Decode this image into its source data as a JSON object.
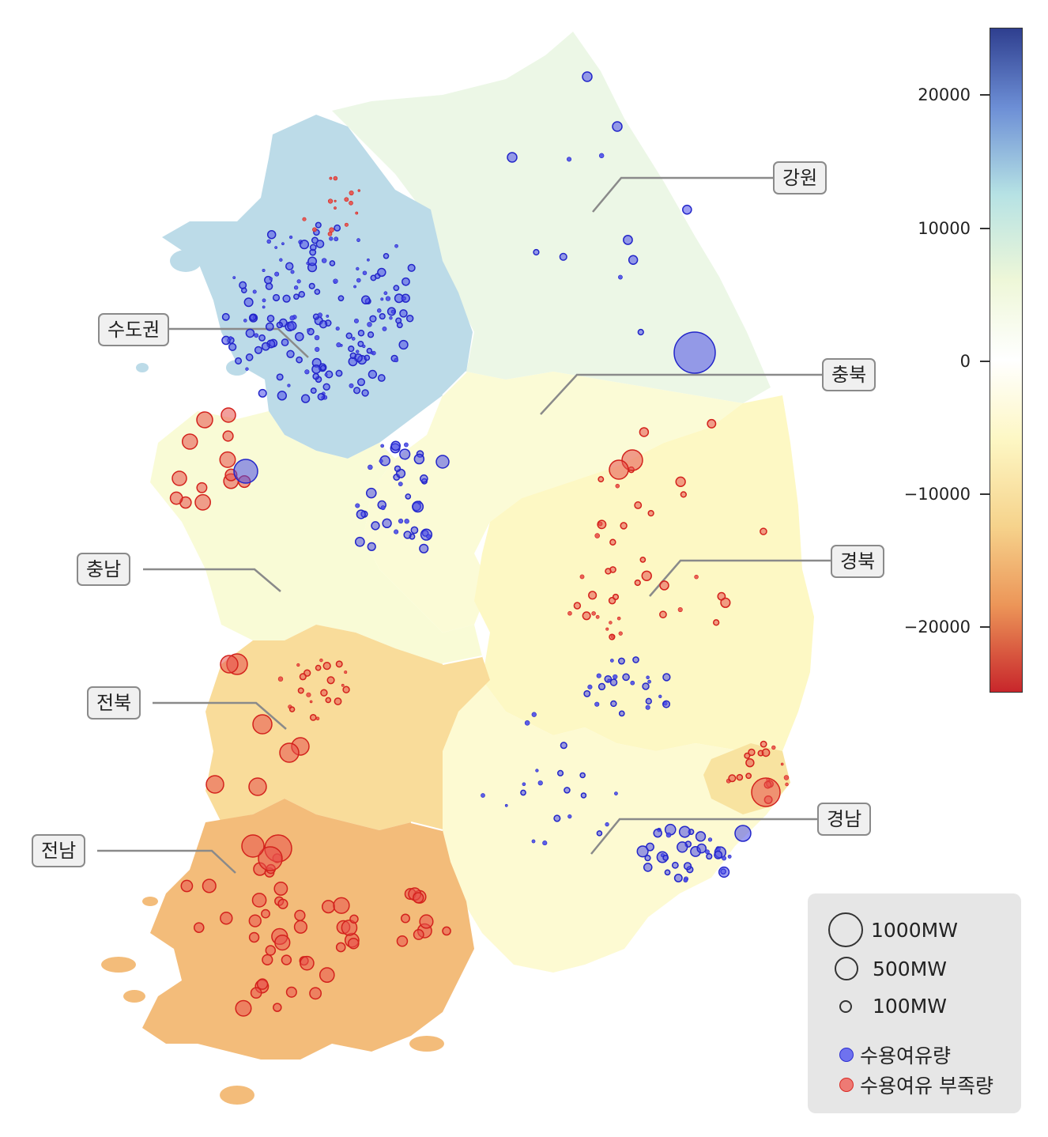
{
  "regions": [
    {
      "id": "sudogwon",
      "label": "수도권",
      "color": "#bcdbe8"
    },
    {
      "id": "gangwon",
      "label": "강원",
      "color": "#ecf7e6"
    },
    {
      "id": "chungbuk",
      "label": "충북",
      "color": "#fbfbd6"
    },
    {
      "id": "chungnam",
      "label": "충남",
      "color": "#f9fbd6"
    },
    {
      "id": "gyeongbuk",
      "label": "경북",
      "color": "#fdf8c4"
    },
    {
      "id": "gyeongnam",
      "label": "경남",
      "color": "#fdfad2"
    },
    {
      "id": "jeonbuk",
      "label": "전북",
      "color": "#f9dc9a"
    },
    {
      "id": "jeonnam",
      "label": "전남",
      "color": "#f3bc7a"
    }
  ],
  "colorbar": {
    "ticks": [
      "20000",
      "10000",
      "0",
      "−10000",
      "−20000"
    ],
    "range": [
      -25000,
      25000
    ]
  },
  "legend": {
    "sizes": [
      {
        "label": "1000MW",
        "value": 1000
      },
      {
        "label": "500MW",
        "value": 500
      },
      {
        "label": "100MW",
        "value": 100
      }
    ],
    "series": [
      {
        "label": "수용여유량",
        "color": "#4b4de8"
      },
      {
        "label": "수용여유 부족량",
        "color": "#e8504a"
      }
    ]
  },
  "colors": {
    "surplus": "#4b4de8",
    "deficit": "#e8504a"
  }
}
